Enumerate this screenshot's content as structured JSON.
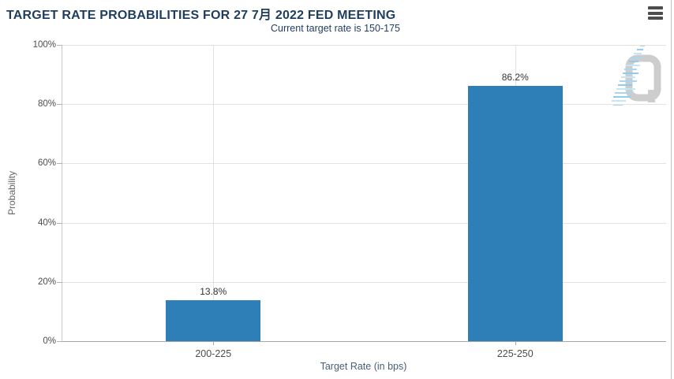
{
  "header": {
    "title": "TARGET RATE PROBABILITIES FOR 27 7月 2022 FED MEETING",
    "subtitle": "Current target rate is 150-175"
  },
  "menu": {
    "icon": "hamburger-menu-icon"
  },
  "watermark": {
    "letter": "Q"
  },
  "colors": {
    "bar": "#2E7FB8",
    "title_text": "#1E3D5F",
    "tick_text": "#4D4D4D",
    "grid_line": "#E2E2E2",
    "axis_line": "#A6A6A6",
    "watermark_gray": "#CDCDCD",
    "watermark_blue": "#A9D7F2"
  },
  "chart_data": {
    "type": "bar",
    "title": "TARGET RATE PROBABILITIES FOR 27 7月 2022 FED MEETING",
    "subtitle": "Current target rate is 150-175",
    "categories": [
      "200-225",
      "225-250"
    ],
    "values": [
      13.8,
      86.2
    ],
    "value_labels": [
      "13.8%",
      "86.2%"
    ],
    "xlabel": "Target Rate (in bps)",
    "ylabel": "Probability",
    "y_ticks": [
      "100%",
      "80%",
      "60%",
      "40%",
      "20%",
      "0%"
    ],
    "ylim": [
      0,
      100
    ],
    "grid": true,
    "legend": false,
    "bar_color": "#2E7FB8"
  }
}
